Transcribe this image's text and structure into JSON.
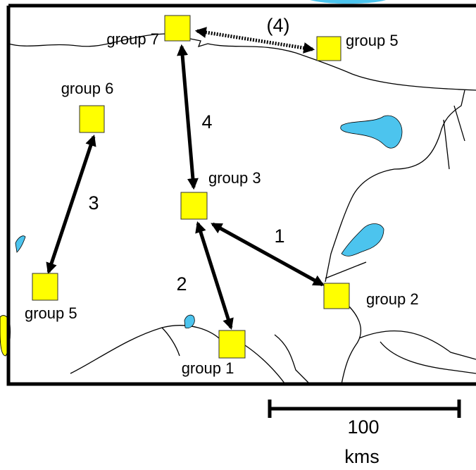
{
  "nodes": [
    {
      "label": "group 7"
    },
    {
      "label": "group 5"
    },
    {
      "label": "group 6"
    },
    {
      "label": "group 3"
    },
    {
      "label": "group 5"
    },
    {
      "label": "group 2"
    },
    {
      "label": "group 1"
    }
  ],
  "edges": [
    {
      "label": "4"
    },
    {
      "label": "3"
    },
    {
      "label": "2"
    },
    {
      "label": "1"
    },
    {
      "label": "(4)"
    }
  ],
  "scale": {
    "distance": "100",
    "unit": "kms"
  }
}
